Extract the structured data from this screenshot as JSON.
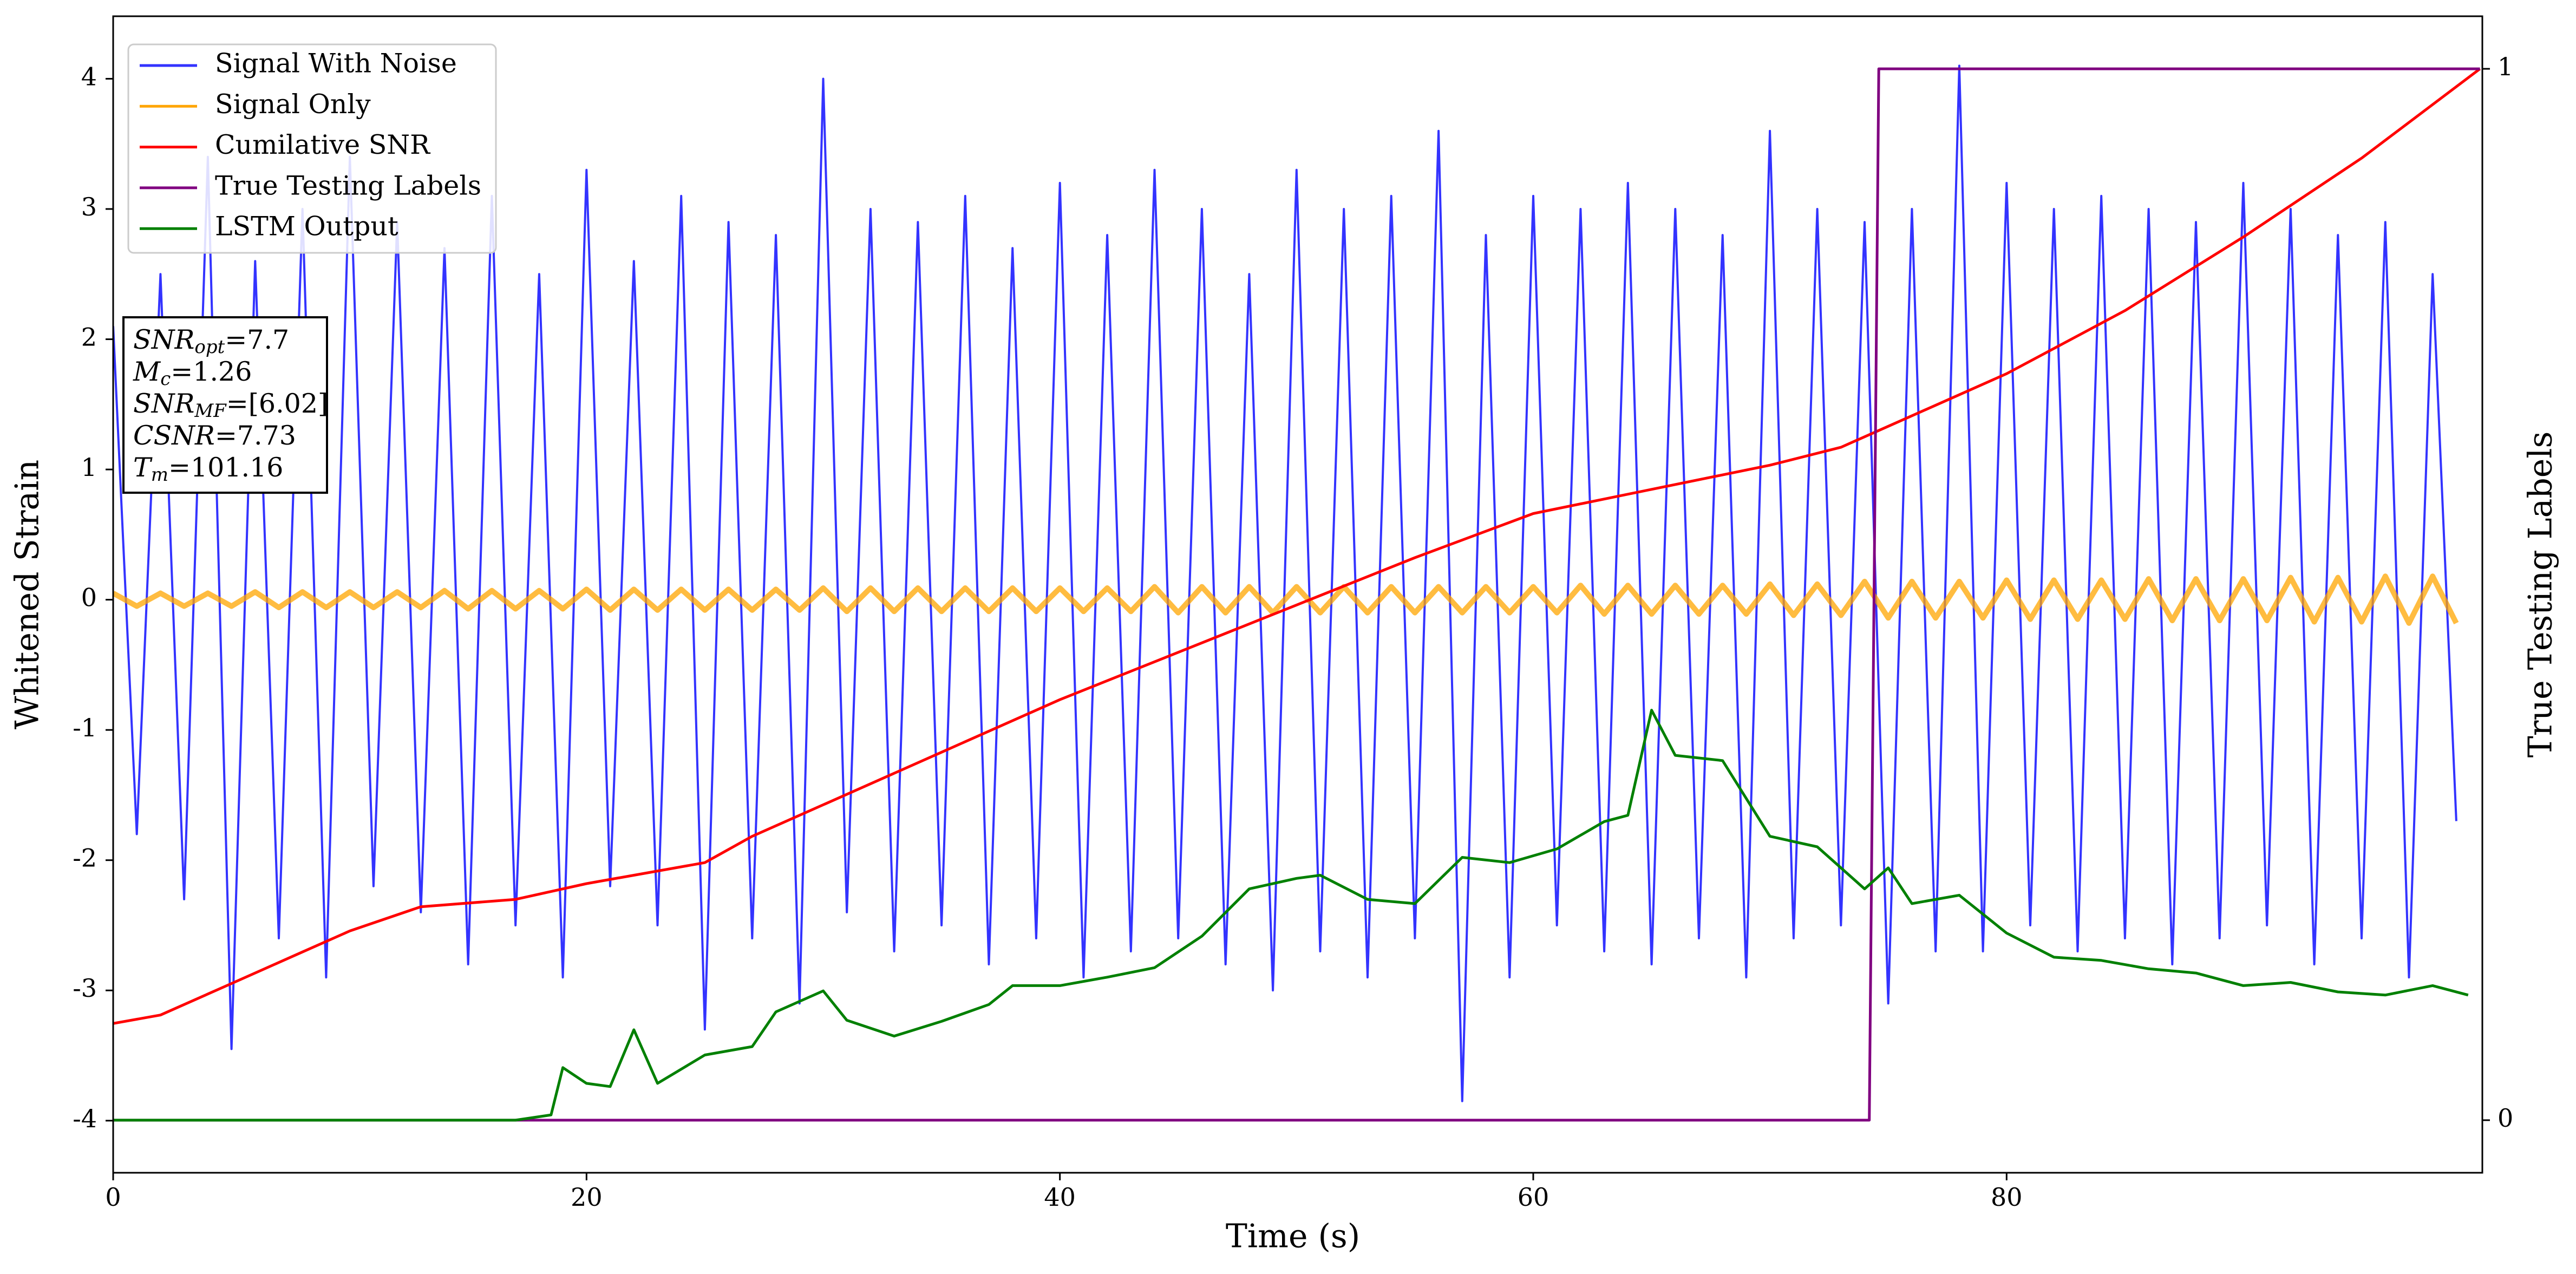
{
  "chart_data": {
    "type": "line",
    "xlabel": "Time (s)",
    "ylabel": "Whitened Strain",
    "y2label": "True Testing Labels",
    "xlim": [
      0,
      100.1
    ],
    "ylim": [
      -4.4,
      4.48
    ],
    "y2lim": [
      -0.05,
      1.05
    ],
    "xticks": [
      0,
      20,
      40,
      60,
      80
    ],
    "yticks": [
      -4,
      -3,
      -2,
      -1,
      0,
      1,
      2,
      3,
      4
    ],
    "y2ticks": [
      0,
      1
    ],
    "legend": "upper left",
    "x": [
      0,
      1,
      2,
      3,
      4,
      5,
      6,
      7,
      8,
      9,
      10,
      11,
      12,
      13,
      14,
      15,
      16,
      17,
      18,
      19,
      20,
      21,
      22,
      23,
      24,
      25,
      26,
      27,
      28,
      29,
      30,
      31,
      32,
      33,
      34,
      35,
      36,
      37,
      38,
      39,
      40,
      41,
      42,
      43,
      44,
      45,
      46,
      47,
      48,
      49,
      50,
      51,
      52,
      53,
      54,
      55,
      56,
      57,
      58,
      59,
      60,
      61,
      62,
      63,
      64,
      65,
      66,
      67,
      68,
      69,
      70,
      71,
      72,
      73,
      74,
      75,
      76,
      77,
      78,
      79,
      80,
      81,
      82,
      83,
      84,
      85,
      86,
      87,
      88,
      89,
      90,
      91,
      92,
      93,
      94,
      95,
      96,
      97,
      98,
      99
    ],
    "series": [
      {
        "name": "Signal With Noise",
        "color": "#3333ff",
        "values": [
          2.1,
          -1.8,
          2.5,
          -2.3,
          3.4,
          -3.45,
          2.6,
          -2.6,
          3.0,
          -2.9,
          3.4,
          -2.2,
          2.9,
          -2.4,
          2.7,
          -2.8,
          3.1,
          -2.5,
          2.5,
          -2.9,
          3.3,
          -2.2,
          2.6,
          -2.5,
          3.1,
          -3.3,
          2.9,
          -2.6,
          2.8,
          -3.1,
          4.0,
          -2.4,
          3.0,
          -2.7,
          2.9,
          -2.5,
          3.1,
          -2.8,
          2.7,
          -2.6,
          3.2,
          -2.9,
          2.8,
          -2.7,
          3.3,
          -2.6,
          3.0,
          -2.8,
          2.5,
          -3.0,
          3.3,
          -2.7,
          3.0,
          -2.9,
          3.1,
          -2.6,
          3.6,
          -3.85,
          2.8,
          -2.9,
          3.1,
          -2.5,
          3.0,
          -2.7,
          3.2,
          -2.8,
          3.0,
          -2.6,
          2.8,
          -2.9,
          3.6,
          -2.6,
          3.0,
          -2.5,
          2.9,
          -3.1,
          3.0,
          -2.7,
          4.1,
          -2.7,
          3.2,
          -2.5,
          3.0,
          -2.7,
          3.1,
          -2.6,
          3.0,
          -2.8,
          2.9,
          -2.6,
          3.2,
          -2.5,
          3.0,
          -2.8,
          2.8,
          -2.6,
          2.9,
          -2.9,
          2.5,
          -1.7
        ]
      },
      {
        "name": "Signal Only",
        "color": "#ffa500",
        "values": [
          0.05,
          -0.05,
          0.05,
          -0.05,
          0.05,
          -0.05,
          0.06,
          -0.06,
          0.06,
          -0.06,
          0.06,
          -0.06,
          0.06,
          -0.06,
          0.07,
          -0.07,
          0.07,
          -0.07,
          0.07,
          -0.07,
          0.08,
          -0.08,
          0.08,
          -0.08,
          0.08,
          -0.08,
          0.08,
          -0.08,
          0.08,
          -0.08,
          0.09,
          -0.09,
          0.09,
          -0.09,
          0.09,
          -0.09,
          0.09,
          -0.09,
          0.09,
          -0.09,
          0.09,
          -0.09,
          0.09,
          -0.09,
          0.1,
          -0.1,
          0.1,
          -0.1,
          0.1,
          -0.1,
          0.1,
          -0.1,
          0.1,
          -0.1,
          0.1,
          -0.1,
          0.1,
          -0.1,
          0.1,
          -0.1,
          0.1,
          -0.1,
          0.11,
          -0.11,
          0.11,
          -0.11,
          0.11,
          -0.11,
          0.11,
          -0.11,
          0.12,
          -0.12,
          0.12,
          -0.12,
          0.14,
          -0.14,
          0.14,
          -0.14,
          0.14,
          -0.14,
          0.15,
          -0.15,
          0.15,
          -0.15,
          0.15,
          -0.15,
          0.16,
          -0.16,
          0.16,
          -0.16,
          0.16,
          -0.16,
          0.17,
          -0.17,
          0.17,
          -0.17,
          0.18,
          -0.18,
          0.18,
          -0.18
        ]
      },
      {
        "name": "Cumilative SNR",
        "color": "#ff0000",
        "axis": "y2",
        "x": [
          0,
          2,
          5,
          8,
          10,
          13,
          17,
          20,
          25,
          27,
          30,
          35,
          40,
          45,
          50,
          55,
          60,
          65,
          70,
          73,
          75,
          80,
          85,
          90,
          95,
          100
        ],
        "values": [
          0.092,
          0.1,
          0.13,
          0.16,
          0.18,
          0.203,
          0.21,
          0.225,
          0.245,
          0.27,
          0.3,
          0.35,
          0.4,
          0.445,
          0.49,
          0.535,
          0.577,
          0.6,
          0.623,
          0.64,
          0.66,
          0.71,
          0.77,
          0.84,
          0.915,
          1.0
        ]
      },
      {
        "name": "True Testing Labels",
        "color": "#800080",
        "axis": "y2",
        "x": [
          0,
          74.2,
          74.6,
          100
        ],
        "values": [
          0,
          0,
          1,
          1
        ]
      },
      {
        "name": "LSTM Output",
        "color": "#008000",
        "axis": "y2",
        "x": [
          0,
          17,
          18.5,
          19,
          20,
          21,
          22,
          23,
          25,
          27,
          28,
          30,
          31,
          33,
          35,
          37,
          38,
          40,
          42,
          44,
          46,
          48,
          50,
          51,
          53,
          55,
          57,
          59,
          61,
          63,
          64,
          65,
          66,
          68,
          70,
          72,
          74,
          75,
          76,
          78,
          80,
          82,
          84,
          86,
          88,
          90,
          92,
          94,
          96,
          98,
          99.5
        ],
        "values": [
          0,
          0,
          0.005,
          0.05,
          0.035,
          0.032,
          0.086,
          0.035,
          0.062,
          0.07,
          0.103,
          0.123,
          0.095,
          0.08,
          0.094,
          0.11,
          0.128,
          0.128,
          0.136,
          0.145,
          0.175,
          0.22,
          0.23,
          0.233,
          0.21,
          0.206,
          0.25,
          0.245,
          0.258,
          0.284,
          0.29,
          0.39,
          0.347,
          0.342,
          0.27,
          0.26,
          0.22,
          0.24,
          0.206,
          0.214,
          0.178,
          0.155,
          0.152,
          0.144,
          0.14,
          0.128,
          0.131,
          0.122,
          0.119,
          0.128,
          0.119
        ]
      }
    ],
    "annotations": [
      {
        "symbol": "SNR",
        "subscript": "opt",
        "text": "=7.7"
      },
      {
        "symbol": "M",
        "subscript": "c",
        "text": "=1.26"
      },
      {
        "symbol": "SNR",
        "subscript": "MF",
        "text": "=[6.02]"
      },
      {
        "symbol": "CSNR",
        "text": "=7.73"
      },
      {
        "symbol": "T",
        "subscript": "m",
        "text": "=101.16"
      }
    ]
  }
}
